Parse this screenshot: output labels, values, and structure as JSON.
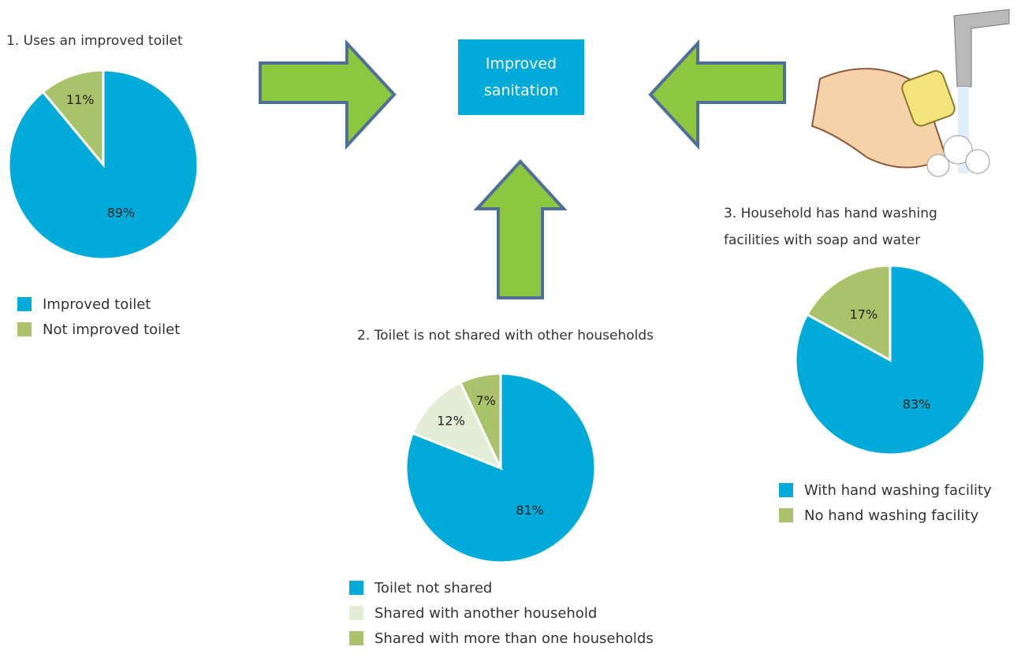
{
  "center_box": {
    "label": "Improved sanitation"
  },
  "chart_data": [
    {
      "type": "pie",
      "title": "1. Uses an improved toilet",
      "categories": [
        "Improved toilet",
        "Not improved toilet"
      ],
      "values": [
        89,
        11
      ],
      "value_labels": [
        "89%",
        "11%"
      ],
      "colors": [
        "#00aad9",
        "#aac36a"
      ]
    },
    {
      "type": "pie",
      "title": "2. Toilet is not shared with other households",
      "categories": [
        "Toilet not shared",
        "Shared with another household",
        "Shared with more than one households"
      ],
      "values": [
        81,
        12,
        7
      ],
      "value_labels": [
        "81%",
        "12%",
        "7%"
      ],
      "colors": [
        "#00aad9",
        "#e3edd6",
        "#aac36a"
      ]
    },
    {
      "type": "pie",
      "title": "3. Household has hand washing facilities with soap and water",
      "categories": [
        "With hand washing facility",
        "No hand washing facility"
      ],
      "values": [
        83,
        17
      ],
      "value_labels": [
        "83%",
        "17%"
      ],
      "colors": [
        "#00aad9",
        "#aac36a"
      ]
    }
  ]
}
